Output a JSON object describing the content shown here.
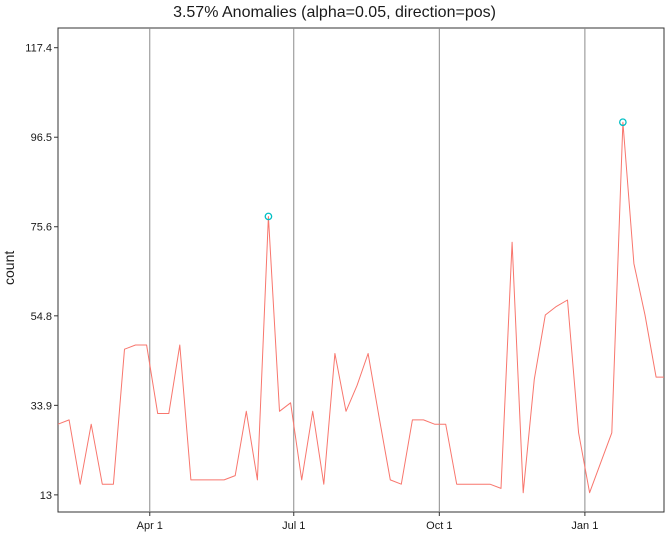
{
  "chart_data": {
    "type": "line",
    "title": "3.57% Anomalies (alpha=0.05, direction=pos)",
    "xlabel": "",
    "ylabel": "count",
    "ylim": [
      9,
      122
    ],
    "y_ticks": [
      13,
      33.9,
      54.8,
      75.6,
      96.5,
      117.4
    ],
    "y_tick_labels": [
      "13",
      "33.9",
      "54.8",
      "75.6",
      "96.5",
      "117.4"
    ],
    "x_range": [
      "2016-02-03",
      "2017-02-20"
    ],
    "x_ticks": [
      "2016-04-01",
      "2016-07-01",
      "2016-10-01",
      "2017-01-01"
    ],
    "x_tick_labels": [
      "Apr 1",
      "Jul 1",
      "Oct 1",
      "Jan 1"
    ],
    "grid": "vertical lines at x ticks",
    "line_color": "#f8766d",
    "anomaly_color": "#00bfc4",
    "series": [
      {
        "x": [
          "2016-02-03",
          "2016-02-10",
          "2016-02-17",
          "2016-02-24",
          "2016-03-02",
          "2016-03-09",
          "2016-03-16",
          "2016-03-23",
          "2016-03-30",
          "2016-04-06",
          "2016-04-13",
          "2016-04-20",
          "2016-04-27",
          "2016-05-04",
          "2016-05-11",
          "2016-05-18",
          "2016-05-25",
          "2016-06-01",
          "2016-06-08",
          "2016-06-15",
          "2016-06-22",
          "2016-06-29",
          "2016-07-06",
          "2016-07-13",
          "2016-07-20",
          "2016-07-27",
          "2016-08-03",
          "2016-08-10",
          "2016-08-17",
          "2016-08-24",
          "2016-08-31",
          "2016-09-07",
          "2016-09-14",
          "2016-09-21",
          "2016-09-28",
          "2016-10-05",
          "2016-10-12",
          "2016-10-19",
          "2016-10-26",
          "2016-11-02",
          "2016-11-09",
          "2016-11-16",
          "2016-11-23",
          "2016-11-30",
          "2016-12-07",
          "2016-12-14",
          "2016-12-21",
          "2016-12-28",
          "2017-01-04",
          "2017-01-11",
          "2017-01-18",
          "2017-01-25",
          "2017-02-01",
          "2017-02-08",
          "2017-02-15",
          "2017-02-20"
        ],
        "values": [
          29.5,
          30.5,
          15.5,
          29.5,
          15.5,
          15.5,
          47,
          48,
          48,
          32,
          32,
          48,
          16.5,
          16.5,
          16.5,
          16.5,
          17.5,
          32.5,
          16.5,
          78,
          32.5,
          34.5,
          16.5,
          32.5,
          15.5,
          46,
          32.5,
          38.5,
          46,
          31,
          16.5,
          15.5,
          30.5,
          30.5,
          29.5,
          29.5,
          15.5,
          15.5,
          15.5,
          15.5,
          14.5,
          72,
          13.5,
          40,
          55,
          57,
          58.5,
          27.5,
          13.5,
          20.5,
          27.5,
          100,
          67,
          55,
          40.5,
          40.5
        ]
      }
    ],
    "anomalies": {
      "x": [
        "2016-06-15",
        "2017-01-25"
      ],
      "values": [
        78,
        100
      ]
    }
  }
}
